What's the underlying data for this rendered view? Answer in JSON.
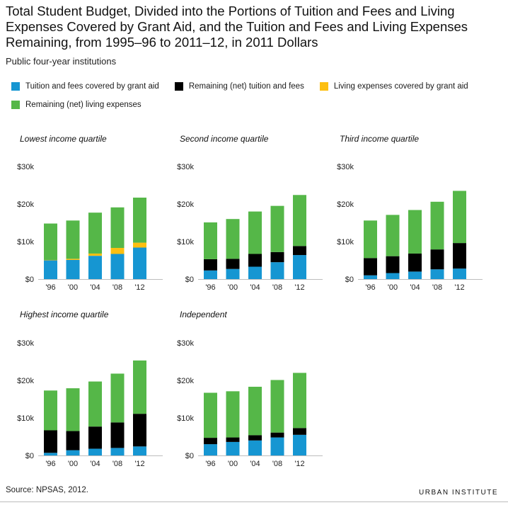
{
  "header": {
    "title": "Total Student Budget, Divided into the Portions of Tuition and Fees and Living Expenses Covered by Grant Aid, and the Tuition and Fees and Living Expenses Remaining, from 1995–96 to 2011–12, in 2011 Dollars",
    "subtitle": "Public four-year institutions"
  },
  "legend": [
    {
      "label": "Tuition and fees covered by grant aid",
      "color": "#1696d2"
    },
    {
      "label": "Remaining (net) tuition and fees",
      "color": "#000000"
    },
    {
      "label": "Living expenses covered by grant aid",
      "color": "#fdbf11"
    },
    {
      "label": "Remaining (net) living expenses",
      "color": "#55b748"
    }
  ],
  "footer": {
    "source": "Source: NPSAS, 2012.",
    "brand": "URBAN INSTITUTE"
  },
  "chart_data": [
    {
      "type": "bar",
      "stacked": true,
      "title": "Lowest income quartile",
      "categories": [
        "'96",
        "'00",
        "'04",
        "'08",
        "'12"
      ],
      "yticks": [
        "$0",
        "$10k",
        "$20k",
        "$30k"
      ],
      "ylim": [
        0,
        30000
      ],
      "series": [
        {
          "name": "Tuition and fees covered by grant aid",
          "color": "#1696d2",
          "values": [
            5000,
            5100,
            6200,
            6700,
            8400
          ]
        },
        {
          "name": "Remaining (net) tuition and fees",
          "color": "#000000",
          "values": [
            0,
            0,
            0,
            0,
            0
          ]
        },
        {
          "name": "Living expenses covered by grant aid",
          "color": "#fdbf11",
          "values": [
            100,
            300,
            600,
            1600,
            1300
          ]
        },
        {
          "name": "Remaining (net) living expenses",
          "color": "#55b748",
          "values": [
            9700,
            10200,
            10900,
            10800,
            12000
          ]
        }
      ]
    },
    {
      "type": "bar",
      "stacked": true,
      "title": "Second income quartile",
      "categories": [
        "'96",
        "'00",
        "'04",
        "'08",
        "'12"
      ],
      "yticks": [
        "$0",
        "$10k",
        "$20k",
        "$30k"
      ],
      "ylim": [
        0,
        30000
      ],
      "series": [
        {
          "name": "Tuition and fees covered by grant aid",
          "color": "#1696d2",
          "values": [
            2300,
            2700,
            3300,
            4500,
            6400
          ]
        },
        {
          "name": "Remaining (net) tuition and fees",
          "color": "#000000",
          "values": [
            3000,
            2700,
            3400,
            2700,
            2400
          ]
        },
        {
          "name": "Living expenses covered by grant aid",
          "color": "#fdbf11",
          "values": [
            0,
            0,
            0,
            0,
            0
          ]
        },
        {
          "name": "Remaining (net) living expenses",
          "color": "#55b748",
          "values": [
            9800,
            10600,
            11300,
            12300,
            13600
          ]
        }
      ]
    },
    {
      "type": "bar",
      "stacked": true,
      "title": "Third income quartile",
      "categories": [
        "'96",
        "'00",
        "'04",
        "'08",
        "'12"
      ],
      "yticks": [
        "$0",
        "$10k",
        "$20k",
        "$30k"
      ],
      "ylim": [
        0,
        30000
      ],
      "series": [
        {
          "name": "Tuition and fees covered by grant aid",
          "color": "#1696d2",
          "values": [
            1000,
            1600,
            2000,
            2600,
            2800
          ]
        },
        {
          "name": "Remaining (net) tuition and fees",
          "color": "#000000",
          "values": [
            4600,
            4500,
            4800,
            5300,
            6800
          ]
        },
        {
          "name": "Living expenses covered by grant aid",
          "color": "#fdbf11",
          "values": [
            0,
            0,
            0,
            0,
            0
          ]
        },
        {
          "name": "Remaining (net) living expenses",
          "color": "#55b748",
          "values": [
            10000,
            11000,
            11600,
            12700,
            13900
          ]
        }
      ]
    },
    {
      "type": "bar",
      "stacked": true,
      "title": "Highest income quartile",
      "categories": [
        "'96",
        "'00",
        "'04",
        "'08",
        "'12"
      ],
      "yticks": [
        "$0",
        "$10k",
        "$20k",
        "$30k"
      ],
      "ylim": [
        0,
        30000
      ],
      "series": [
        {
          "name": "Tuition and fees covered by grant aid",
          "color": "#1696d2",
          "values": [
            700,
            1400,
            1800,
            2000,
            2400
          ]
        },
        {
          "name": "Remaining (net) tuition and fees",
          "color": "#000000",
          "values": [
            6000,
            5100,
            5900,
            6800,
            8700
          ]
        },
        {
          "name": "Living expenses covered by grant aid",
          "color": "#fdbf11",
          "values": [
            0,
            0,
            0,
            0,
            0
          ]
        },
        {
          "name": "Remaining (net) living expenses",
          "color": "#55b748",
          "values": [
            10600,
            11400,
            12000,
            13000,
            14200
          ]
        }
      ]
    },
    {
      "type": "bar",
      "stacked": true,
      "title": "Independent",
      "categories": [
        "'96",
        "'00",
        "'04",
        "'08",
        "'12"
      ],
      "yticks": [
        "$0",
        "$10k",
        "$20k",
        "$30k"
      ],
      "ylim": [
        0,
        30000
      ],
      "series": [
        {
          "name": "Tuition and fees covered by grant aid",
          "color": "#1696d2",
          "values": [
            3000,
            3600,
            4000,
            4800,
            5500
          ]
        },
        {
          "name": "Remaining (net) tuition and fees",
          "color": "#000000",
          "values": [
            1700,
            1200,
            1400,
            1300,
            1800
          ]
        },
        {
          "name": "Living expenses covered by grant aid",
          "color": "#fdbf11",
          "values": [
            0,
            0,
            0,
            0,
            0
          ]
        },
        {
          "name": "Remaining (net) living expenses",
          "color": "#55b748",
          "values": [
            12000,
            12300,
            12900,
            14000,
            14700
          ]
        }
      ]
    }
  ]
}
